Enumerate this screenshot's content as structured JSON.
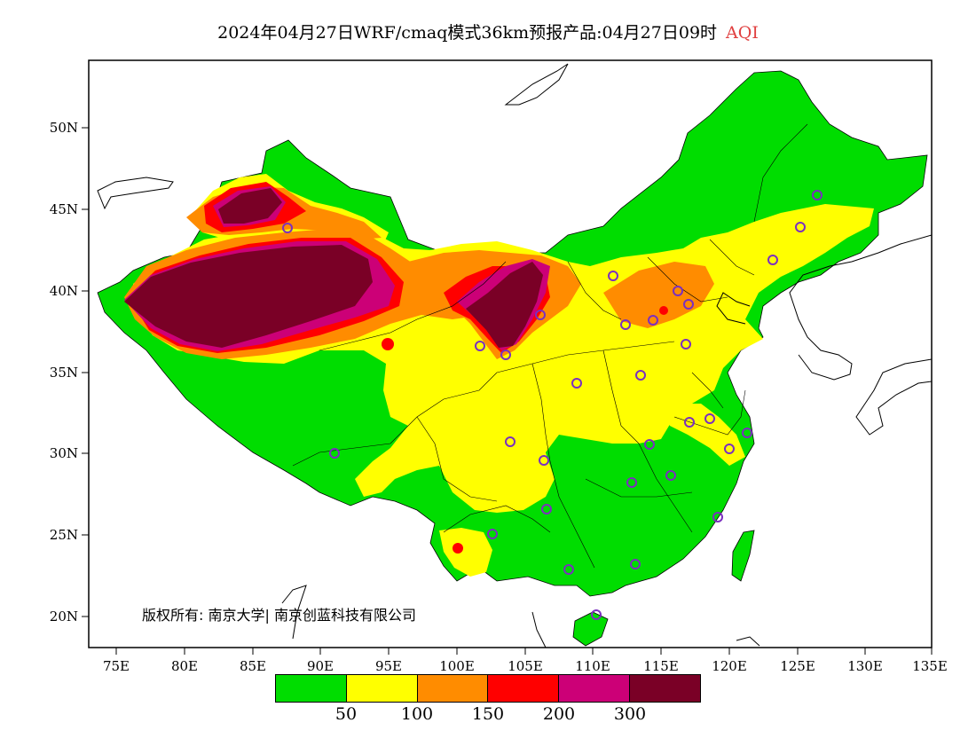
{
  "title": {
    "main": "2024年04月27日WRF/cmaq模式36km预报产品:04月27日09时",
    "product": "AQI"
  },
  "axes": {
    "x_ticks": [
      "75E",
      "80E",
      "85E",
      "90E",
      "95E",
      "100E",
      "105E",
      "110E",
      "115E",
      "120E",
      "125E",
      "130E",
      "135E"
    ],
    "y_ticks": [
      "50N",
      "45N",
      "40N",
      "35N",
      "30N",
      "25N",
      "20N"
    ]
  },
  "legend": {
    "colors": [
      "#00dd00",
      "#ffff00",
      "#ff8c00",
      "#ff0000",
      "#cc0077",
      "#7a0026"
    ],
    "labels": [
      "50",
      "100",
      "150",
      "200",
      "300"
    ]
  },
  "colors": {
    "good": "#00dd00",
    "moderate": "#ffff00",
    "usg": "#ff8c00",
    "unhealthy": "#ff0000",
    "very_unhealthy": "#cc0077",
    "hazardous": "#7a0026",
    "station": "#7b2fbf"
  },
  "copyright": "版权所有: 南京大学| 南京创蓝科技有限公司"
}
